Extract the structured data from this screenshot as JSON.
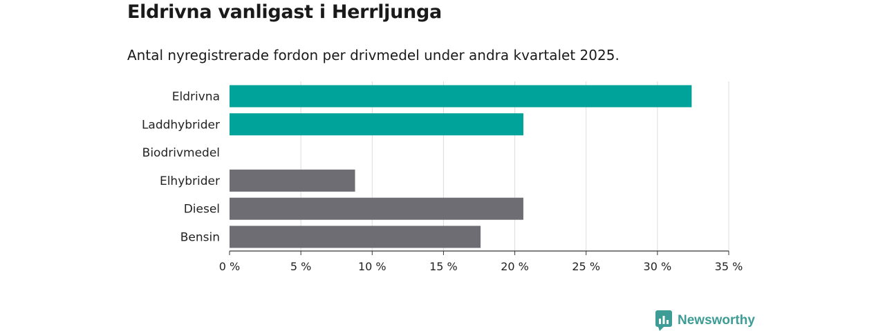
{
  "header": {
    "title": "Eldrivna vanligast i Herrljunga",
    "subtitle": "Antal nyregistrerade fordon per drivmedel under andra kvartalet 2025."
  },
  "brand": {
    "name": "Newsworthy",
    "color": "#3d9c95",
    "icon": "newsworthy-logo-icon"
  },
  "chart_data": {
    "type": "bar",
    "orientation": "horizontal",
    "categories": [
      "Eldrivna",
      "Laddhybrider",
      "Biodrivmedel",
      "Elhybrider",
      "Diesel",
      "Bensin"
    ],
    "values": [
      32.4,
      20.6,
      0,
      8.8,
      20.6,
      17.6
    ],
    "colors": [
      "#00a39a",
      "#00a39a",
      "#00a39a",
      "#6e6d73",
      "#6e6d73",
      "#6e6d73"
    ],
    "xlim": [
      0,
      35
    ],
    "xticks": [
      0,
      5,
      10,
      15,
      20,
      25,
      30,
      35
    ],
    "tick_labels": [
      "0 %",
      "5 %",
      "10 %",
      "15 %",
      "20 %",
      "25 %",
      "30 %",
      "35 %"
    ],
    "grid": "vertical",
    "legend": "none"
  }
}
